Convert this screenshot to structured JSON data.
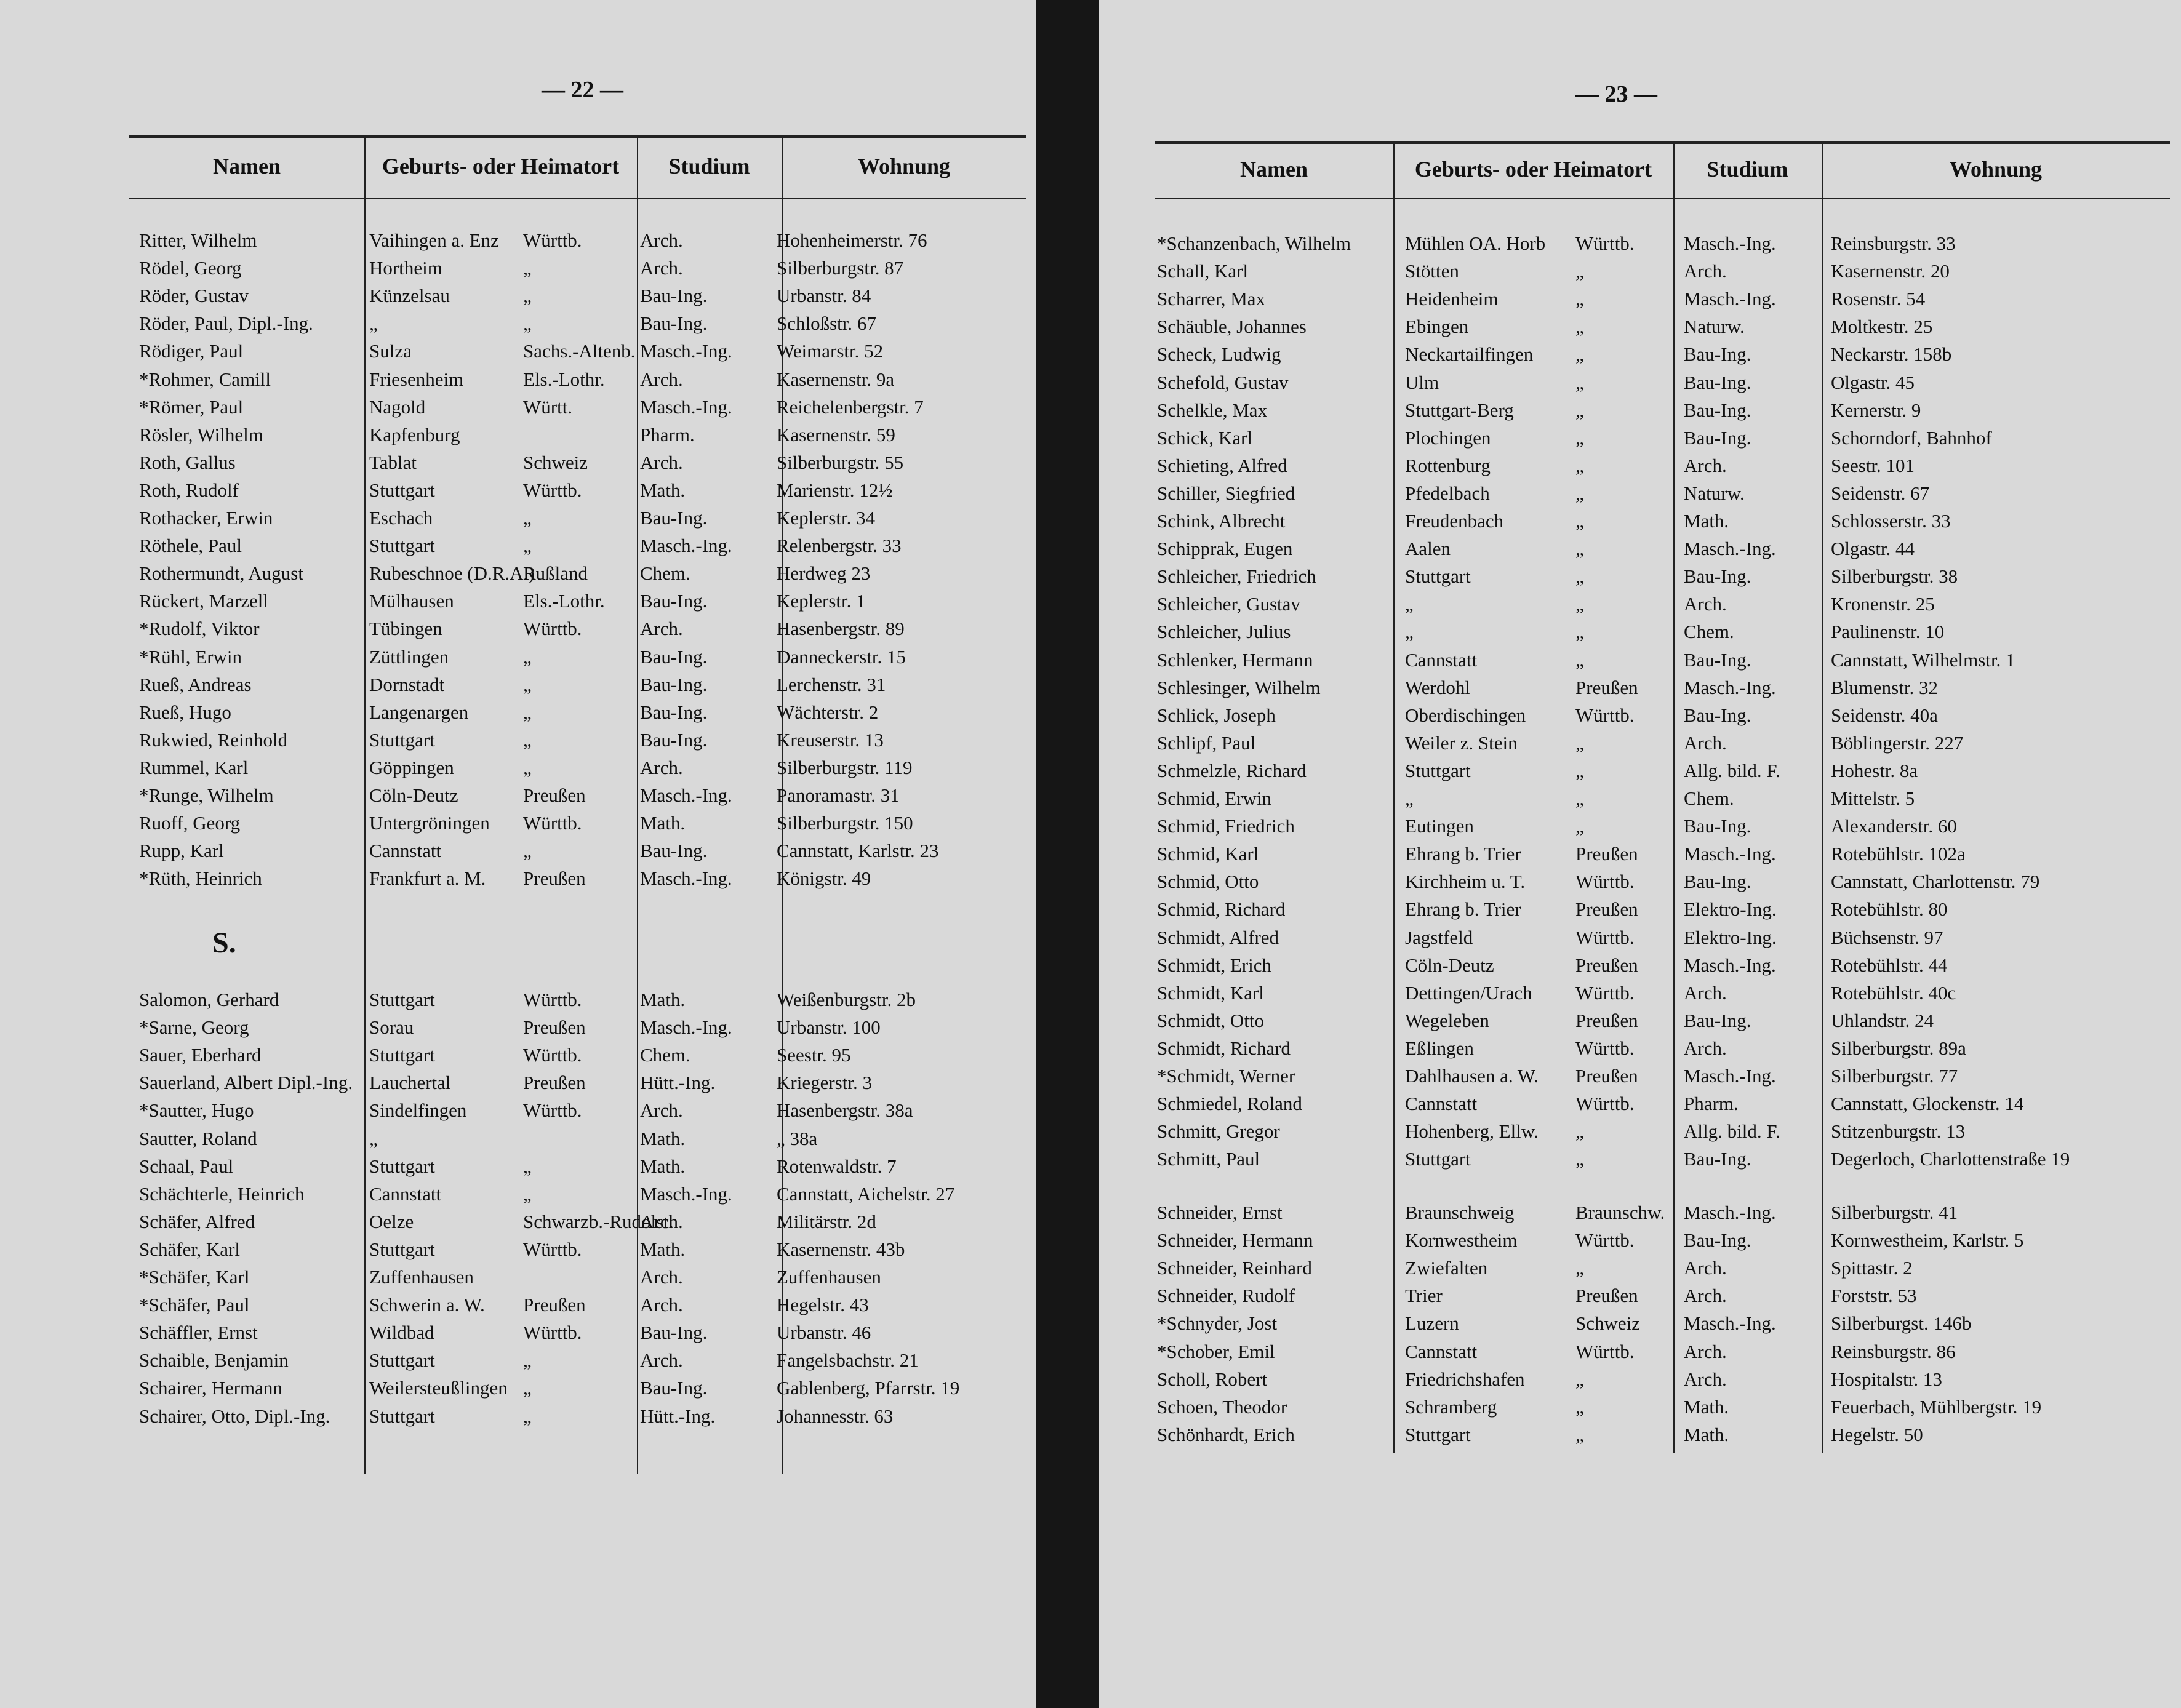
{
  "pages": [
    {
      "number": "— 22 —",
      "headers": [
        "Namen",
        "Geburts- oder Heimatort",
        "Studium",
        "Wohnung"
      ],
      "sections": [
        {
          "rows": [
            {
              "name": "Ritter, Wilhelm",
              "place": "Vaihingen a. Enz",
              "state": "Württb.",
              "study": "Arch.",
              "address": "Hohenheimerstr. 76"
            },
            {
              "name": "Rödel, Georg",
              "place": "Hortheim",
              "state": "„",
              "study": "Arch.",
              "address": "Silberburgstr. 87"
            },
            {
              "name": "Röder, Gustav",
              "place": "Künzelsau",
              "state": "„",
              "study": "Bau-Ing.",
              "address": "Urbanstr. 84"
            },
            {
              "name": "Röder, Paul, Dipl.-Ing.",
              "place": "„",
              "state": "„",
              "study": "Bau-Ing.",
              "address": "Schloßstr. 67"
            },
            {
              "name": "Rödiger, Paul",
              "place": "Sulza",
              "state": "Sachs.-Altenb.",
              "study": "Masch.-Ing.",
              "address": "Weimarstr. 52"
            },
            {
              "name": "*Rohmer, Camill",
              "place": "Friesenheim",
              "state": "Els.-Lothr.",
              "study": "Arch.",
              "address": "Kasernenstr. 9a"
            },
            {
              "name": "*Römer, Paul",
              "place": "Nagold",
              "state": "Württ.",
              "study": "Masch.-Ing.",
              "address": "Reichelenbergstr. 7"
            },
            {
              "name": "Rösler, Wilhelm",
              "place": "Kapfenburg",
              "study": "Pharm.",
              "address": "Kasernenstr. 59"
            },
            {
              "name": "Roth, Gallus",
              "place": "Tablat",
              "state": "Schweiz",
              "study": "Arch.",
              "address": "Silberburgstr. 55"
            },
            {
              "name": "Roth, Rudolf",
              "place": "Stuttgart",
              "state": "Württb.",
              "study": "Math.",
              "address": "Marienstr. 12½"
            },
            {
              "name": "Rothacker, Erwin",
              "place": "Eschach",
              "state": "„",
              "study": "Bau-Ing.",
              "address": "Keplerstr. 34"
            },
            {
              "name": "Röthele, Paul",
              "place": "Stuttgart",
              "state": "„",
              "study": "Masch.-Ing.",
              "address": "Relenbergstr. 33"
            },
            {
              "name": "Rothermundt, August",
              "place": "Rubeschnoe (D.R.A.)",
              "state": "Rußland",
              "study": "Chem.",
              "address": "Herdweg 23"
            },
            {
              "name": "Rückert, Marzell",
              "place": "Mülhausen",
              "state": "Els.-Lothr.",
              "study": "Bau-Ing.",
              "address": "Keplerstr. 1"
            },
            {
              "name": "*Rudolf, Viktor",
              "place": "Tübingen",
              "state": "Württb.",
              "study": "Arch.",
              "address": "Hasenbergstr. 89"
            },
            {
              "name": "*Rühl, Erwin",
              "place": "Züttlingen",
              "state": "„",
              "study": "Bau-Ing.",
              "address": "Danneckerstr. 15"
            },
            {
              "name": "Rueß, Andreas",
              "place": "Dornstadt",
              "state": "„",
              "study": "Bau-Ing.",
              "address": "Lerchenstr. 31"
            },
            {
              "name": "Rueß, Hugo",
              "place": "Langenargen",
              "state": "„",
              "study": "Bau-Ing.",
              "address": "Wächterstr. 2"
            },
            {
              "name": "Rukwied, Reinhold",
              "place": "Stuttgart",
              "state": "„",
              "study": "Bau-Ing.",
              "address": "Kreuserstr. 13"
            },
            {
              "name": "Rummel, Karl",
              "place": "Göppingen",
              "state": "„",
              "study": "Arch.",
              "address": "Silberburgstr. 119"
            },
            {
              "name": "*Runge, Wilhelm",
              "place": "Cöln-Deutz",
              "state": "Preußen",
              "study": "Masch.-Ing.",
              "address": "Panoramastr. 31"
            },
            {
              "name": "Ruoff, Georg",
              "place": "Untergröningen",
              "state": "Württb.",
              "study": "Math.",
              "address": "Silberburgstr. 150"
            },
            {
              "name": "Rupp, Karl",
              "place": "Cannstatt",
              "state": "„",
              "study": "Bau-Ing.",
              "address": "Cannstatt, Karlstr. 23"
            },
            {
              "name": "*Rüth, Heinrich",
              "place": "Frankfurt a. M.",
              "state": "Preußen",
              "study": "Masch.-Ing.",
              "address": "Königstr. 49"
            }
          ]
        },
        {
          "heading": "S.",
          "rows": [
            {
              "name": "Salomon, Gerhard",
              "place": "Stuttgart",
              "state": "Württb.",
              "study": "Math.",
              "address": "Weißenburgstr. 2b"
            },
            {
              "name": "*Sarne, Georg",
              "place": "Sorau",
              "state": "Preußen",
              "study": "Masch.-Ing.",
              "address": "Urbanstr. 100"
            },
            {
              "name": "Sauer, Eberhard",
              "place": "Stuttgart",
              "state": "Württb.",
              "study": "Chem.",
              "address": "Seestr. 95"
            },
            {
              "name": "Sauerland, Albert Dipl.-Ing.",
              "place": "Lauchertal",
              "state": "Preußen",
              "study": "Hütt.-Ing.",
              "address": "Kriegerstr. 3"
            },
            {
              "name": "*Sautter, Hugo",
              "place": "Sindelfingen",
              "state": "Württb.",
              "study": "Arch.",
              "address": "Hasenbergstr. 38a"
            },
            {
              "name": "Sautter, Roland",
              "place": "„",
              "study": "Math.",
              "address": "„ 38a"
            },
            {
              "name": "Schaal, Paul",
              "place": "Stuttgart",
              "state": "„",
              "study": "Math.",
              "address": "Rotenwaldstr. 7"
            },
            {
              "name": "Schächterle, Heinrich",
              "place": "Cannstatt",
              "state": "„",
              "study": "Masch.-Ing.",
              "address": "Cannstatt, Aichelstr. 27"
            },
            {
              "name": "Schäfer, Alfred",
              "place": "Oelze",
              "state": "Schwarzb.-Rudolst.",
              "study": "Arch.",
              "address": "Militärstr. 2d"
            },
            {
              "name": "Schäfer, Karl",
              "place": "Stuttgart",
              "state": "Württb.",
              "study": "Math.",
              "address": "Kasernenstr. 43b"
            },
            {
              "name": "*Schäfer, Karl",
              "place": "Zuffenhausen",
              "study": "Arch.",
              "address": "Zuffenhausen"
            },
            {
              "name": "*Schäfer, Paul",
              "place": "Schwerin a. W.",
              "state": "Preußen",
              "study": "Arch.",
              "address": "Hegelstr. 43"
            },
            {
              "name": "Schäffler, Ernst",
              "place": "Wildbad",
              "state": "Württb.",
              "study": "Bau-Ing.",
              "address": "Urbanstr. 46"
            },
            {
              "name": "Schaible, Benjamin",
              "place": "Stuttgart",
              "state": "„",
              "study": "Arch.",
              "address": "Fangelsbachstr. 21"
            },
            {
              "name": "Schairer, Hermann",
              "place": "Weilersteußlingen",
              "state": "„",
              "study": "Bau-Ing.",
              "address": "Gablenberg, Pfarrstr. 19"
            },
            {
              "name": "Schairer, Otto, Dipl.-Ing.",
              "place": "Stuttgart",
              "state": "„",
              "study": "Hütt.-Ing.",
              "address": "Johannesstr. 63"
            }
          ]
        }
      ]
    },
    {
      "number": "— 23 —",
      "headers": [
        "Namen",
        "Geburts- oder Heimatort",
        "Studium",
        "Wohnung"
      ],
      "sections": [
        {
          "rows": [
            {
              "name": "*Schanzenbach, Wilhelm",
              "place": "Mühlen OA. Horb",
              "state": "Württb.",
              "study": "Masch.-Ing.",
              "address": "Reinsburgstr. 33"
            },
            {
              "name": "Schall, Karl",
              "place": "Stötten",
              "state": "„",
              "study": "Arch.",
              "address": "Kasernenstr. 20"
            },
            {
              "name": "Scharrer, Max",
              "place": "Heidenheim",
              "state": "„",
              "study": "Masch.-Ing.",
              "address": "Rosenstr. 54"
            },
            {
              "name": "Schäuble, Johannes",
              "place": "Ebingen",
              "state": "„",
              "study": "Naturw.",
              "address": "Moltkestr. 25"
            },
            {
              "name": "Scheck, Ludwig",
              "place": "Neckartailfingen",
              "state": "„",
              "study": "Bau-Ing.",
              "address": "Neckarstr. 158b"
            },
            {
              "name": "Schefold, Gustav",
              "place": "Ulm",
              "state": "„",
              "study": "Bau-Ing.",
              "address": "Olgastr. 45"
            },
            {
              "name": "Schelkle, Max",
              "place": "Stuttgart-Berg",
              "state": "„",
              "study": "Bau-Ing.",
              "address": "Kernerstr. 9"
            },
            {
              "name": "Schick, Karl",
              "place": "Plochingen",
              "state": "„",
              "study": "Bau-Ing.",
              "address": "Schorndorf, Bahnhof"
            },
            {
              "name": "Schieting, Alfred",
              "place": "Rottenburg",
              "state": "„",
              "study": "Arch.",
              "address": "Seestr. 101"
            },
            {
              "name": "Schiller, Siegfried",
              "place": "Pfedelbach",
              "state": "„",
              "study": "Naturw.",
              "address": "Seidenstr. 67"
            },
            {
              "name": "Schink, Albrecht",
              "place": "Freudenbach",
              "state": "„",
              "study": "Math.",
              "address": "Schlosserstr. 33"
            },
            {
              "name": "Schipprak, Eugen",
              "place": "Aalen",
              "state": "„",
              "study": "Masch.-Ing.",
              "address": "Olgastr. 44"
            },
            {
              "name": "Schleicher, Friedrich",
              "place": "Stuttgart",
              "state": "„",
              "study": "Bau-Ing.",
              "address": "Silberburgstr. 38"
            },
            {
              "name": "Schleicher, Gustav",
              "place": "„",
              "state": "„",
              "study": "Arch.",
              "address": "Kronenstr. 25"
            },
            {
              "name": "Schleicher, Julius",
              "place": "„",
              "state": "„",
              "study": "Chem.",
              "address": "Paulinenstr. 10"
            },
            {
              "name": "Schlenker, Hermann",
              "place": "Cannstatt",
              "state": "„",
              "study": "Bau-Ing.",
              "address": "Cannstatt, Wilhelmstr. 1"
            },
            {
              "name": "Schlesinger, Wilhelm",
              "place": "Werdohl",
              "state": "Preußen",
              "study": "Masch.-Ing.",
              "address": "Blumenstr. 32"
            },
            {
              "name": "Schlick, Joseph",
              "place": "Oberdischingen",
              "state": "Württb.",
              "study": "Bau-Ing.",
              "address": "Seidenstr. 40a"
            },
            {
              "name": "Schlipf, Paul",
              "place": "Weiler z. Stein",
              "state": "„",
              "study": "Arch.",
              "address": "Böblingerstr. 227"
            },
            {
              "name": "Schmelzle, Richard",
              "place": "Stuttgart",
              "state": "„",
              "study": "Allg. bild. F.",
              "address": "Hohestr. 8a"
            },
            {
              "name": "Schmid, Erwin",
              "place": "„",
              "state": "„",
              "study": "Chem.",
              "address": "Mittelstr. 5"
            },
            {
              "name": "Schmid, Friedrich",
              "place": "Eutingen",
              "state": "„",
              "study": "Bau-Ing.",
              "address": "Alexanderstr. 60"
            },
            {
              "name": "Schmid, Karl",
              "place": "Ehrang b. Trier",
              "state": "Preußen",
              "study": "Masch.-Ing.",
              "address": "Rotebühlstr. 102a"
            },
            {
              "name": "Schmid, Otto",
              "place": "Kirchheim u. T.",
              "state": "Württb.",
              "study": "Bau-Ing.",
              "address": "Cannstatt, Charlottenstr. 79"
            },
            {
              "name": "Schmid, Richard",
              "place": "Ehrang b. Trier",
              "state": "Preußen",
              "study": "Elektro-Ing.",
              "address": "Rotebühlstr. 80"
            },
            {
              "name": "Schmidt, Alfred",
              "place": "Jagstfeld",
              "state": "Württb.",
              "study": "Elektro-Ing.",
              "address": "Büchsenstr. 97"
            },
            {
              "name": "Schmidt, Erich",
              "place": "Cöln-Deutz",
              "state": "Preußen",
              "study": "Masch.-Ing.",
              "address": "Rotebühlstr. 44"
            },
            {
              "name": "Schmidt, Karl",
              "place": "Dettingen/Urach",
              "state": "Württb.",
              "study": "Arch.",
              "address": "Rotebühlstr. 40c"
            },
            {
              "name": "Schmidt, Otto",
              "place": "Wegeleben",
              "state": "Preußen",
              "study": "Bau-Ing.",
              "address": "Uhlandstr. 24"
            },
            {
              "name": "Schmidt, Richard",
              "place": "Eßlingen",
              "state": "Württb.",
              "study": "Arch.",
              "address": "Silberburgstr. 89a"
            },
            {
              "name": "*Schmidt, Werner",
              "place": "Dahlhausen a. W.",
              "state": "Preußen",
              "study": "Masch.-Ing.",
              "address": "Silberburgstr. 77"
            },
            {
              "name": "Schmiedel, Roland",
              "place": "Cannstatt",
              "state": "Württb.",
              "study": "Pharm.",
              "address": "Cannstatt, Glockenstr. 14"
            },
            {
              "name": "Schmitt, Gregor",
              "place": "Hohenberg, Ellw.",
              "state": "„",
              "study": "Allg. bild. F.",
              "address": "Stitzenburgstr. 13"
            },
            {
              "name": "Schmitt, Paul",
              "place": "Stuttgart",
              "state": "„",
              "study": "Bau-Ing.",
              "address": "Degerloch, Charlottenstraße 19"
            }
          ]
        },
        {
          "rows": [
            {
              "name": "Schneider, Ernst",
              "place": "Braunschweig",
              "state": "Braunschw.",
              "study": "Masch.-Ing.",
              "address": "Silberburgstr. 41"
            },
            {
              "name": "Schneider, Hermann",
              "place": "Kornwestheim",
              "state": "Württb.",
              "study": "Bau-Ing.",
              "address": "Kornwestheim, Karlstr. 5"
            },
            {
              "name": "Schneider, Reinhard",
              "place": "Zwiefalten",
              "state": "„",
              "study": "Arch.",
              "address": "Spittastr. 2"
            },
            {
              "name": "Schneider, Rudolf",
              "place": "Trier",
              "state": "Preußen",
              "study": "Arch.",
              "address": "Forststr. 53"
            },
            {
              "name": "*Schnyder, Jost",
              "place": "Luzern",
              "state": "Schweiz",
              "study": "Masch.-Ing.",
              "address": "Silberburgst. 146b"
            },
            {
              "name": "*Schober, Emil",
              "place": "Cannstatt",
              "state": "Württb.",
              "study": "Arch.",
              "address": "Reinsburgstr. 86"
            },
            {
              "name": "Scholl, Robert",
              "place": "Friedrichshafen",
              "state": "„",
              "study": "Arch.",
              "address": "Hospitalstr. 13"
            },
            {
              "name": "Schoen, Theodor",
              "place": "Schramberg",
              "state": "„",
              "study": "Math.",
              "address": "Feuerbach, Mühlbergstr. 19"
            },
            {
              "name": "Schönhardt, Erich",
              "place": "Stuttgart",
              "state": "„",
              "study": "Math.",
              "address": "Hegelstr. 50"
            }
          ]
        }
      ]
    }
  ]
}
